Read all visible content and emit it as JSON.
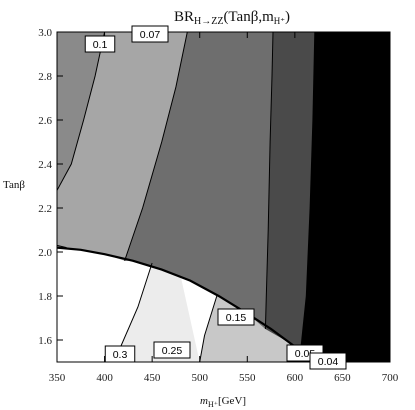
{
  "chart_data": {
    "type": "contour",
    "title": "BR",
    "title_sub": "H→ZZ",
    "title_args": "(Tanβ,m",
    "title_args_sub": "H⁺",
    "title_close": ")",
    "xlabel_main": "m",
    "xlabel_sub": "H⁺",
    "xlabel_unit": "[GeV]",
    "ylabel": "Tanβ",
    "xlim": [
      350,
      700
    ],
    "ylim": [
      1.5,
      3.0
    ],
    "xticks": [
      "350",
      "400",
      "450",
      "500",
      "550",
      "600",
      "650",
      "700"
    ],
    "yticks": [
      "1.6",
      "1.8",
      "2.0",
      "2.2",
      "2.4",
      "2.6",
      "2.8",
      "3.0"
    ],
    "excluded_boundary": [
      [
        350,
        2.02
      ],
      [
        375,
        2.01
      ],
      [
        400,
        1.99
      ],
      [
        430,
        1.96
      ],
      [
        460,
        1.92
      ],
      [
        490,
        1.87
      ],
      [
        520,
        1.8
      ],
      [
        550,
        1.72
      ],
      [
        575,
        1.65
      ],
      [
        600,
        1.57
      ],
      [
        615,
        1.52
      ]
    ],
    "contours": [
      {
        "label": "0.1",
        "points": [
          [
            350,
            2.28
          ],
          [
            365,
            2.4
          ],
          [
            378,
            2.6
          ],
          [
            390,
            2.8
          ],
          [
            400,
            3.0
          ]
        ]
      },
      {
        "label": "0.07",
        "points": [
          [
            421,
            1.96
          ],
          [
            440,
            2.2
          ],
          [
            460,
            2.5
          ],
          [
            475,
            2.75
          ],
          [
            487,
            3.0
          ]
        ]
      },
      {
        "label": "0.05",
        "points": [
          [
            569,
            1.65
          ],
          [
            570,
            1.8
          ],
          [
            572,
            2.1
          ],
          [
            574,
            2.5
          ],
          [
            576,
            2.8
          ],
          [
            577,
            3.0
          ]
        ]
      },
      {
        "label": "0.04",
        "points": [
          [
            606,
            1.55
          ],
          [
            612,
            1.8
          ],
          [
            616,
            2.2
          ],
          [
            619,
            2.6
          ],
          [
            621,
            3.0
          ]
        ]
      },
      {
        "label": "0.15",
        "points": [
          [
            350,
            2.03
          ],
          [
            360,
            2.02
          ]
        ]
      },
      {
        "label": "0.3",
        "points": [
          [
            415,
            1.55
          ],
          [
            435,
            1.75
          ],
          [
            450,
            1.95
          ]
        ]
      },
      {
        "label": "0.25",
        "points": [
          [
            500,
            1.5
          ],
          [
            505,
            1.62
          ],
          [
            518,
            1.8
          ]
        ]
      }
    ],
    "levels": [
      {
        "label": "0.3"
      },
      {
        "label": "0.25"
      },
      {
        "label": "0.15"
      },
      {
        "label": "0.1"
      },
      {
        "label": "0.07"
      },
      {
        "label": "0.05"
      },
      {
        "label": "0.04"
      }
    ]
  }
}
